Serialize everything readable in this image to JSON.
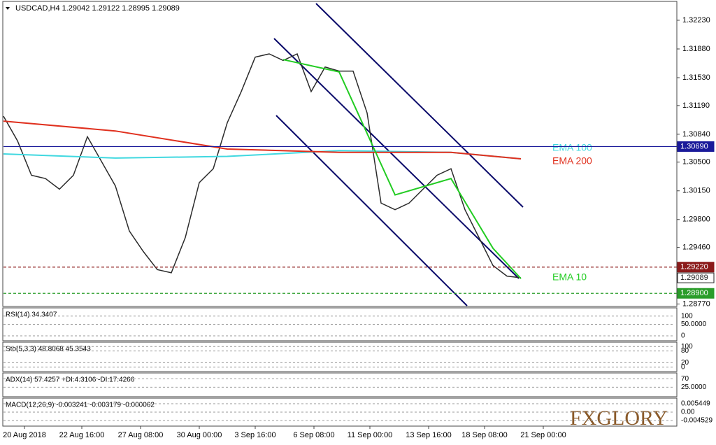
{
  "header": {
    "symbol": "USDCAD,H4 1.29042 1.29122 1.28995 1.29089"
  },
  "chart_data": {
    "type": "line",
    "xlim": [
      0,
      240
    ],
    "xticks": [
      {
        "value": 7.5,
        "label": "20 Aug 2018"
      },
      {
        "value": 28,
        "label": "22 Aug 16:00"
      },
      {
        "value": 49,
        "label": "27 Aug 08:00"
      },
      {
        "value": 70,
        "label": "30 Aug 00:00"
      },
      {
        "value": 90,
        "label": "3 Sep 16:00"
      },
      {
        "value": 111,
        "label": "6 Sep 08:00"
      },
      {
        "value": 131,
        "label": "11 Sep 00:00"
      },
      {
        "value": 152,
        "label": "13 Sep 16:00"
      },
      {
        "value": 172,
        "label": "18 Sep 08:00"
      },
      {
        "value": 193,
        "label": "21 Sep 00:00"
      }
    ],
    "ylim": [
      1.2874,
      1.3246
    ],
    "yticks": [
      {
        "value": 1.3223,
        "label": "1.32230"
      },
      {
        "value": 1.3188,
        "label": "1.31880"
      },
      {
        "value": 1.3153,
        "label": "1.31530"
      },
      {
        "value": 1.3119,
        "label": "1.31190"
      },
      {
        "value": 1.3084,
        "label": "1.30840"
      },
      {
        "value": 1.305,
        "label": "1.30500"
      },
      {
        "value": 1.3015,
        "label": "1.30150"
      },
      {
        "value": 1.298,
        "label": "1.29800"
      },
      {
        "value": 1.2946,
        "label": "1.29460"
      },
      {
        "value": 1.2877,
        "label": "1.28770"
      }
    ],
    "series": [
      {
        "color": "#2b2b2b",
        "x": [
          0,
          5,
          10,
          15,
          20,
          25,
          30,
          35,
          40,
          45,
          50,
          55,
          60,
          65,
          70,
          75,
          80,
          85,
          90,
          95,
          100,
          105,
          110,
          115,
          120,
          125,
          130,
          135,
          140,
          145,
          150,
          155,
          160,
          165,
          170,
          175,
          180,
          185
        ],
        "values": [
          1.3106,
          1.3076,
          1.3034,
          1.303,
          1.3017,
          1.3034,
          1.3081,
          1.3051,
          1.3021,
          1.2966,
          1.2941,
          1.2919,
          1.2915,
          1.2958,
          1.3025,
          1.3042,
          1.3098,
          1.3136,
          1.3178,
          1.3182,
          1.3174,
          1.3182,
          1.3136,
          1.3166,
          1.3161,
          1.3161,
          1.311,
          1.3,
          1.2992,
          1.3,
          1.3017,
          1.3034,
          1.3042,
          1.2992,
          1.2958,
          1.2924,
          1.2911,
          1.2909
        ]
      },
      {
        "name": "EMA 100",
        "color": "#40d8e0",
        "x": [
          0,
          40,
          80,
          120,
          160,
          185
        ],
        "values": [
          1.306,
          1.3055,
          1.3057,
          1.3064,
          1.3062,
          1.3054
        ]
      },
      {
        "name": "EMA 200",
        "color": "#e0301e",
        "x": [
          0,
          40,
          80,
          120,
          160,
          185
        ],
        "values": [
          1.31,
          1.3088,
          1.3066,
          1.3062,
          1.3062,
          1.3054
        ]
      },
      {
        "name": "EMA 10",
        "color": "#22cc22",
        "x": [
          100,
          120,
          140,
          160,
          175,
          185
        ],
        "values": [
          1.3175,
          1.316,
          1.301,
          1.303,
          1.2945,
          1.2908
        ]
      }
    ],
    "levels": [
      {
        "value": 1.3069,
        "label": "1.30690",
        "color": "#1a1a9a",
        "dashed": false,
        "line": true
      },
      {
        "value": 1.2922,
        "label": "1.29220",
        "color": "#8b1a1a",
        "dashed": true,
        "line": true
      },
      {
        "value": 1.29089,
        "label": "1.29089",
        "color": "#222222",
        "dashed": false,
        "line": false
      },
      {
        "value": 1.289,
        "label": "1.28900",
        "color": "#2a9d2a",
        "dashed": true,
        "line": true
      }
    ]
  },
  "indicators": [
    {
      "title": "RSI(14) 34.3407",
      "ticks": [
        "100",
        "50.0000",
        "0"
      ]
    },
    {
      "title": "Sto(5,3,3) 48.8068 45.3543",
      "ticks": [
        "100",
        "80",
        "20",
        "0"
      ]
    },
    {
      "title": "ADX(14) 57.4257 +DI:4.3106 -DI:17.4266",
      "ticks": [
        "70",
        "25.0000"
      ]
    },
    {
      "title": "MACD(12,26,9) -0.003241 -0.003179 -0.000062",
      "ticks": [
        "0.005449",
        "0.00",
        "-0.004529"
      ]
    }
  ],
  "logo": "FXGLORY"
}
